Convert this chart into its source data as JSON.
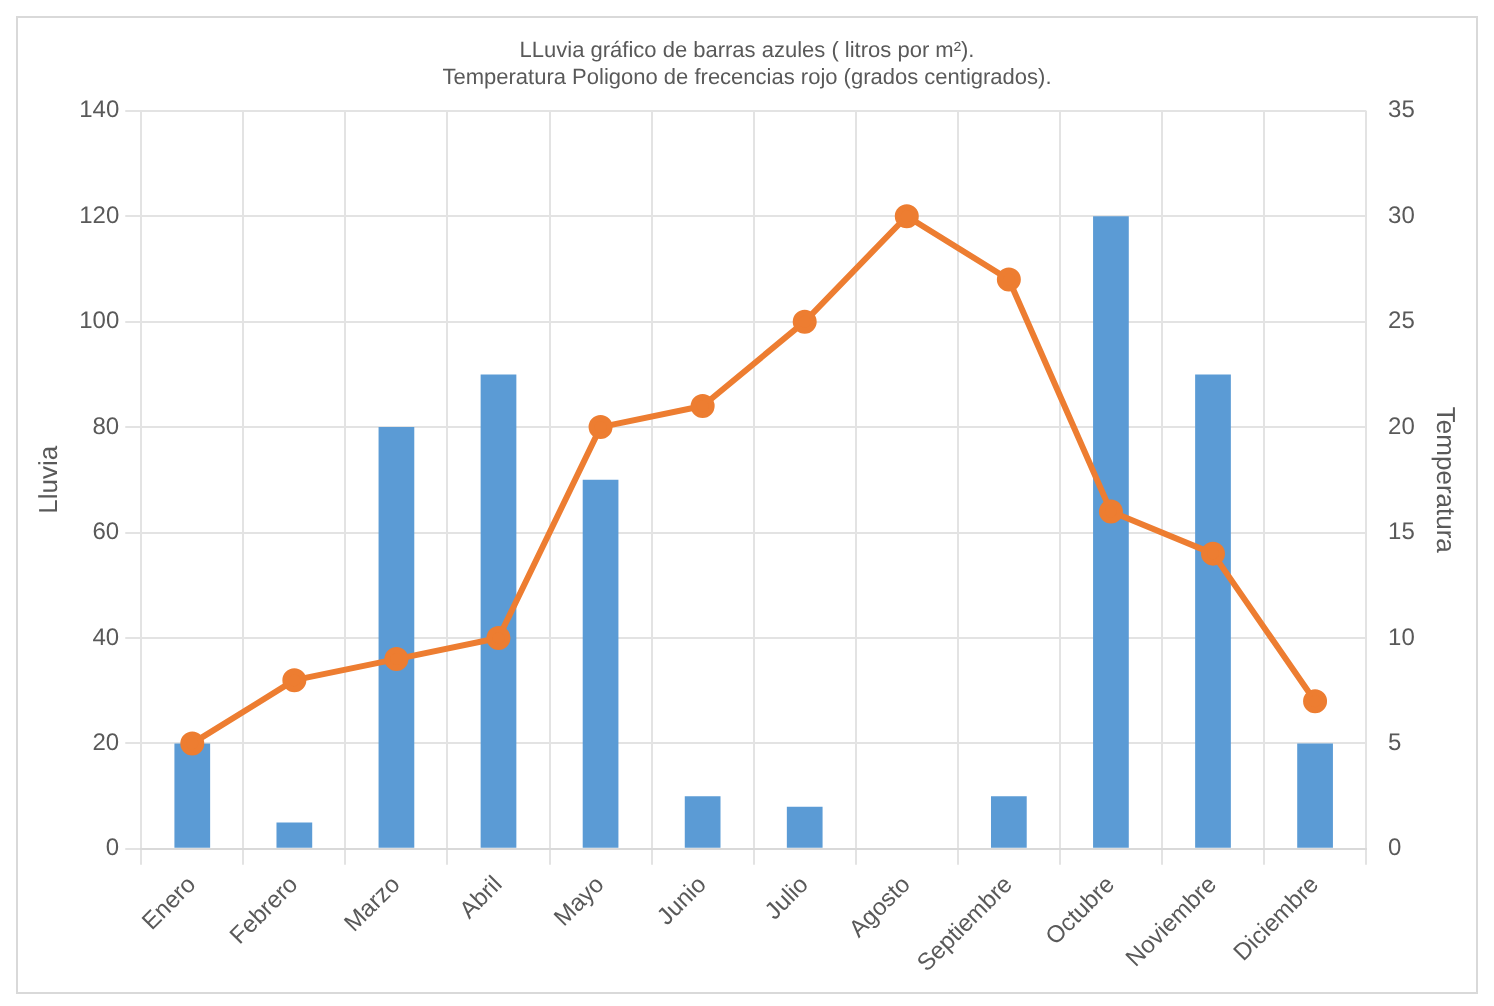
{
  "chart_data": {
    "type": "bar",
    "title": "LLuvia gráfico de barras azules ( litros por m²).",
    "subtitle": "Temperatura Poligono de frecencias rojo (grados centigrados).",
    "ylabel": "Lluvia",
    "y2label": "Temperatura",
    "categories": [
      "Enero",
      "Febrero",
      "Marzo",
      "Abril",
      "Mayo",
      "Junio",
      "Julio",
      "Agosto",
      "Septiembre",
      "Octubre",
      "Noviembre",
      "Diciembre"
    ],
    "series": [
      {
        "color": "#5b9bd5",
        "values": [
          20,
          5,
          80,
          90,
          70,
          10,
          8,
          0,
          10,
          120,
          90,
          20
        ]
      },
      {
        "type": "line",
        "axis": "y2",
        "color": "#ed7d31",
        "marker": "circle",
        "values": [
          5,
          8,
          9,
          10,
          20,
          21,
          25,
          30,
          27,
          16,
          14,
          7
        ]
      }
    ],
    "ylim": [
      0,
      140
    ],
    "yticks": [
      0,
      20,
      40,
      60,
      80,
      100,
      120,
      140
    ],
    "y2lim": [
      0,
      35
    ],
    "y2ticks": [
      0,
      5,
      10,
      15,
      20,
      25,
      30,
      35
    ],
    "grid": true,
    "legend": false
  }
}
